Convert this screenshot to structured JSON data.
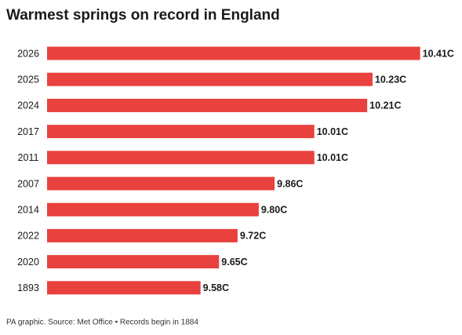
{
  "chart_data": {
    "type": "bar",
    "orientation": "horizontal",
    "title": "Warmest springs on record in England",
    "categories": [
      "2026",
      "2025",
      "2024",
      "2017",
      "2011",
      "2007",
      "2014",
      "2022",
      "2020",
      "1893"
    ],
    "values": [
      10.41,
      10.23,
      10.21,
      10.01,
      10.01,
      9.86,
      9.8,
      9.72,
      9.65,
      9.58
    ],
    "value_labels": [
      "10.41C",
      "10.23C",
      "10.21C",
      "10.01C",
      "10.01C",
      "9.86C",
      "9.80C",
      "9.72C",
      "9.65C",
      "9.58C"
    ],
    "color": "#e8413e",
    "xlim": [
      9,
      10.5
    ],
    "footnote": "PA graphic. Source: Met Office • Records begin in 1884"
  }
}
